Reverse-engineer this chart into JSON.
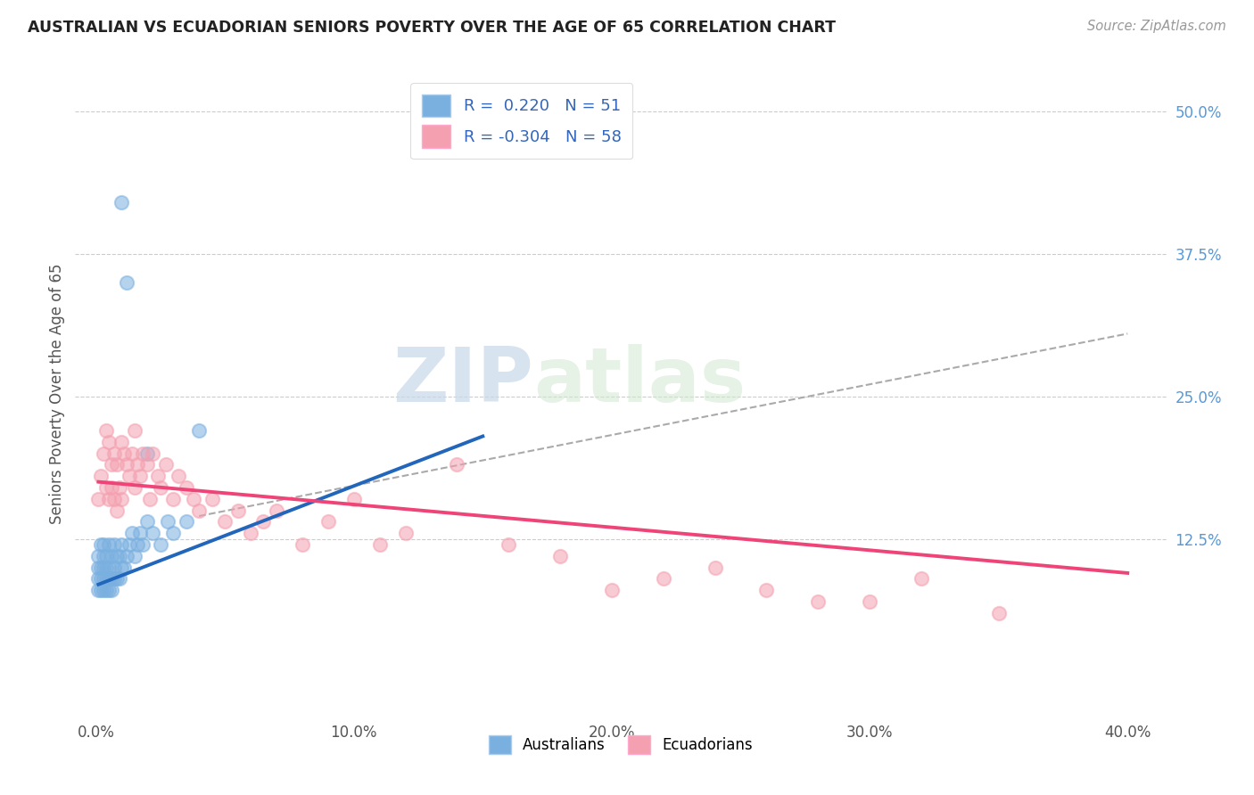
{
  "title": "AUSTRALIAN VS ECUADORIAN SENIORS POVERTY OVER THE AGE OF 65 CORRELATION CHART",
  "source": "Source: ZipAtlas.com",
  "ylabel": "Seniors Poverty Over the Age of 65",
  "xlabel_ticks": [
    "0.0%",
    "10.0%",
    "20.0%",
    "30.0%",
    "40.0%"
  ],
  "xlabel_vals": [
    0.0,
    0.1,
    0.2,
    0.3,
    0.4
  ],
  "ylabel_ticks": [
    "12.5%",
    "25.0%",
    "37.5%",
    "50.0%"
  ],
  "ylabel_vals": [
    0.125,
    0.25,
    0.375,
    0.5
  ],
  "xlim": [
    -0.008,
    0.415
  ],
  "ylim": [
    -0.03,
    0.535
  ],
  "australian_R": 0.22,
  "australian_N": 51,
  "ecuadorian_R": -0.304,
  "ecuadorian_N": 58,
  "aus_color": "#7ab0e0",
  "ecu_color": "#f4a0b0",
  "aus_line_color": "#2266bb",
  "ecu_line_color": "#ee4477",
  "trend_line_color": "#aaaaaa",
  "background_color": "#ffffff",
  "grid_color": "#cccccc",
  "legend_label_aus": "Australians",
  "legend_label_ecu": "Ecuadorians",
  "watermark_zip": "ZIP",
  "watermark_atlas": "atlas",
  "aus_x": [
    0.001,
    0.001,
    0.001,
    0.001,
    0.002,
    0.002,
    0.002,
    0.002,
    0.003,
    0.003,
    0.003,
    0.003,
    0.003,
    0.004,
    0.004,
    0.004,
    0.004,
    0.005,
    0.005,
    0.005,
    0.005,
    0.006,
    0.006,
    0.006,
    0.007,
    0.007,
    0.007,
    0.008,
    0.008,
    0.009,
    0.009,
    0.01,
    0.01,
    0.011,
    0.012,
    0.013,
    0.014,
    0.015,
    0.016,
    0.017,
    0.018,
    0.02,
    0.022,
    0.025,
    0.028,
    0.03,
    0.035,
    0.04,
    0.01,
    0.012,
    0.02
  ],
  "aus_y": [
    0.08,
    0.09,
    0.1,
    0.11,
    0.08,
    0.09,
    0.1,
    0.12,
    0.08,
    0.09,
    0.1,
    0.11,
    0.12,
    0.08,
    0.09,
    0.1,
    0.11,
    0.08,
    0.09,
    0.1,
    0.12,
    0.08,
    0.09,
    0.11,
    0.09,
    0.1,
    0.12,
    0.09,
    0.11,
    0.09,
    0.11,
    0.1,
    0.12,
    0.1,
    0.11,
    0.12,
    0.13,
    0.11,
    0.12,
    0.13,
    0.12,
    0.14,
    0.13,
    0.12,
    0.14,
    0.13,
    0.14,
    0.22,
    0.42,
    0.35,
    0.2
  ],
  "ecu_x": [
    0.001,
    0.002,
    0.003,
    0.004,
    0.004,
    0.005,
    0.005,
    0.006,
    0.006,
    0.007,
    0.007,
    0.008,
    0.008,
    0.009,
    0.01,
    0.01,
    0.011,
    0.012,
    0.013,
    0.014,
    0.015,
    0.015,
    0.016,
    0.017,
    0.018,
    0.02,
    0.021,
    0.022,
    0.024,
    0.025,
    0.027,
    0.03,
    0.032,
    0.035,
    0.038,
    0.04,
    0.045,
    0.05,
    0.055,
    0.06,
    0.065,
    0.07,
    0.08,
    0.09,
    0.1,
    0.11,
    0.12,
    0.14,
    0.16,
    0.18,
    0.2,
    0.22,
    0.24,
    0.26,
    0.28,
    0.3,
    0.32,
    0.35
  ],
  "ecu_y": [
    0.16,
    0.18,
    0.2,
    0.17,
    0.22,
    0.16,
    0.21,
    0.17,
    0.19,
    0.16,
    0.2,
    0.15,
    0.19,
    0.17,
    0.16,
    0.21,
    0.2,
    0.19,
    0.18,
    0.2,
    0.17,
    0.22,
    0.19,
    0.18,
    0.2,
    0.19,
    0.16,
    0.2,
    0.18,
    0.17,
    0.19,
    0.16,
    0.18,
    0.17,
    0.16,
    0.15,
    0.16,
    0.14,
    0.15,
    0.13,
    0.14,
    0.15,
    0.12,
    0.14,
    0.16,
    0.12,
    0.13,
    0.19,
    0.12,
    0.11,
    0.08,
    0.09,
    0.1,
    0.08,
    0.07,
    0.07,
    0.09,
    0.06
  ],
  "aus_line_x": [
    0.001,
    0.15
  ],
  "aus_line_y": [
    0.085,
    0.215
  ],
  "ecu_line_x": [
    0.001,
    0.4
  ],
  "ecu_line_y": [
    0.175,
    0.095
  ],
  "grey_line_x": [
    0.04,
    0.4
  ],
  "grey_line_y": [
    0.145,
    0.305
  ]
}
